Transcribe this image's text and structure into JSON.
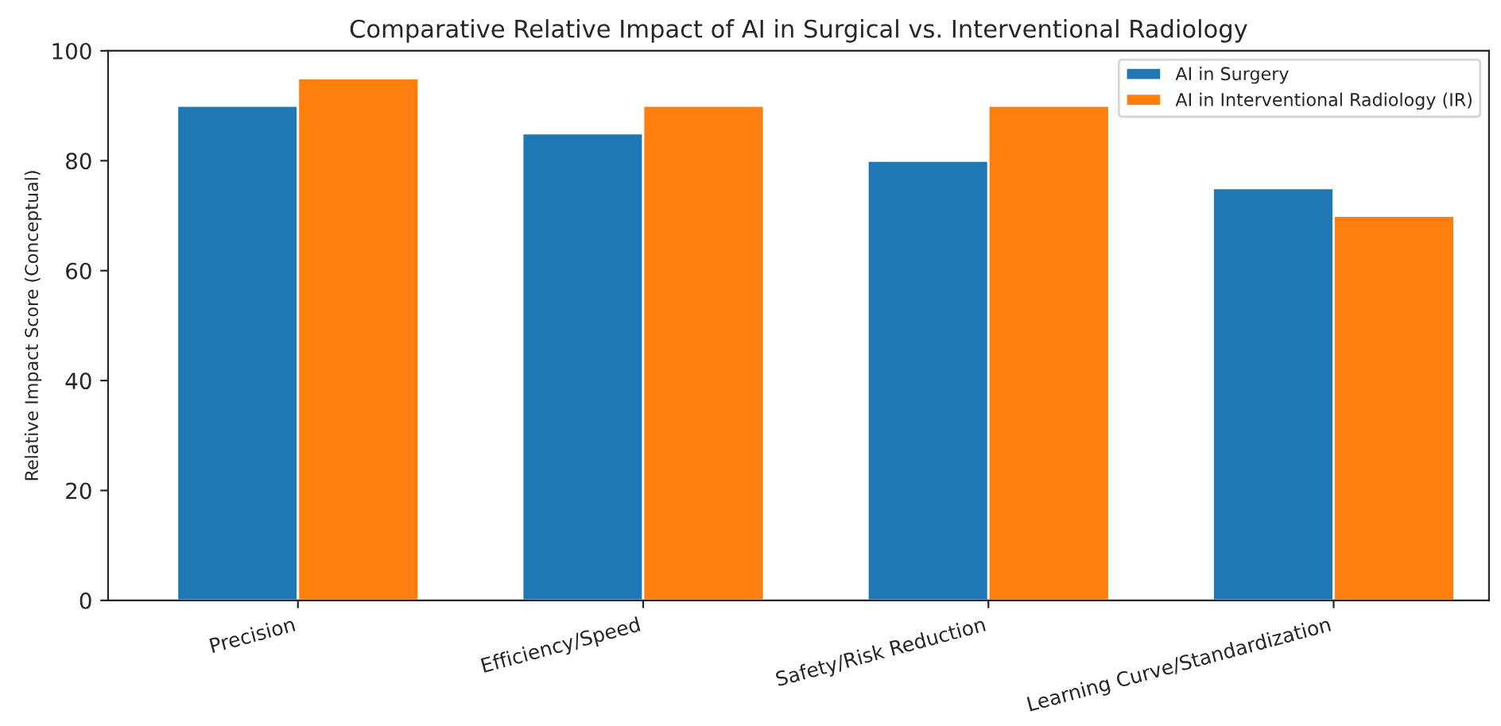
{
  "chart_data": {
    "type": "bar",
    "title": "Comparative Relative Impact of AI in Surgical vs. Interventional Radiology",
    "ylabel": "Relative Impact Score (Conceptual)",
    "categories": [
      "Precision",
      "Efficiency/Speed",
      "Safety/Risk Reduction",
      "Learning Curve/Standardization"
    ],
    "series": [
      {
        "name": "AI in Surgery",
        "color": "#1f77b4",
        "values": [
          90,
          85,
          80,
          75
        ]
      },
      {
        "name": "AI in Interventional Radiology (IR)",
        "color": "#ff7f0e",
        "values": [
          95,
          90,
          90,
          70
        ]
      }
    ],
    "ylim": [
      0,
      100
    ],
    "yticks": [
      0,
      20,
      40,
      60,
      80,
      100
    ],
    "grid": false,
    "legend": "top right"
  }
}
